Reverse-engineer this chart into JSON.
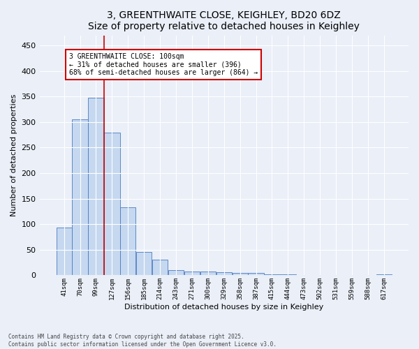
{
  "title": "3, GREENTHWAITE CLOSE, KEIGHLEY, BD20 6DZ",
  "subtitle": "Size of property relative to detached houses in Keighley",
  "xlabel": "Distribution of detached houses by size in Keighley",
  "ylabel": "Number of detached properties",
  "footer": "Contains HM Land Registry data © Crown copyright and database right 2025.\nContains public sector information licensed under the Open Government Licence v3.0.",
  "categories": [
    "41sqm",
    "70sqm",
    "99sqm",
    "127sqm",
    "156sqm",
    "185sqm",
    "214sqm",
    "243sqm",
    "271sqm",
    "300sqm",
    "329sqm",
    "358sqm",
    "387sqm",
    "415sqm",
    "444sqm",
    "473sqm",
    "502sqm",
    "531sqm",
    "559sqm",
    "588sqm",
    "617sqm"
  ],
  "values": [
    93,
    305,
    348,
    280,
    133,
    46,
    31,
    10,
    8,
    7,
    6,
    5,
    4,
    2,
    2,
    1,
    1,
    0,
    1,
    0,
    2
  ],
  "bar_color": "#c5d8f0",
  "bar_edge_color": "#4a7abf",
  "annotation_text": "3 GREENTHWAITE CLOSE: 100sqm\n← 31% of detached houses are smaller (396)\n68% of semi-detached houses are larger (864) →",
  "annotation_box_color": "#ffffff",
  "annotation_border_color": "#cc0000",
  "vline_color": "#cc0000",
  "background_color": "#eaeff8",
  "plot_bg_color": "#eaeff8",
  "title_fontsize": 10,
  "subtitle_fontsize": 9,
  "ylim": [
    0,
    470
  ],
  "yticks": [
    0,
    50,
    100,
    150,
    200,
    250,
    300,
    350,
    400,
    450
  ]
}
